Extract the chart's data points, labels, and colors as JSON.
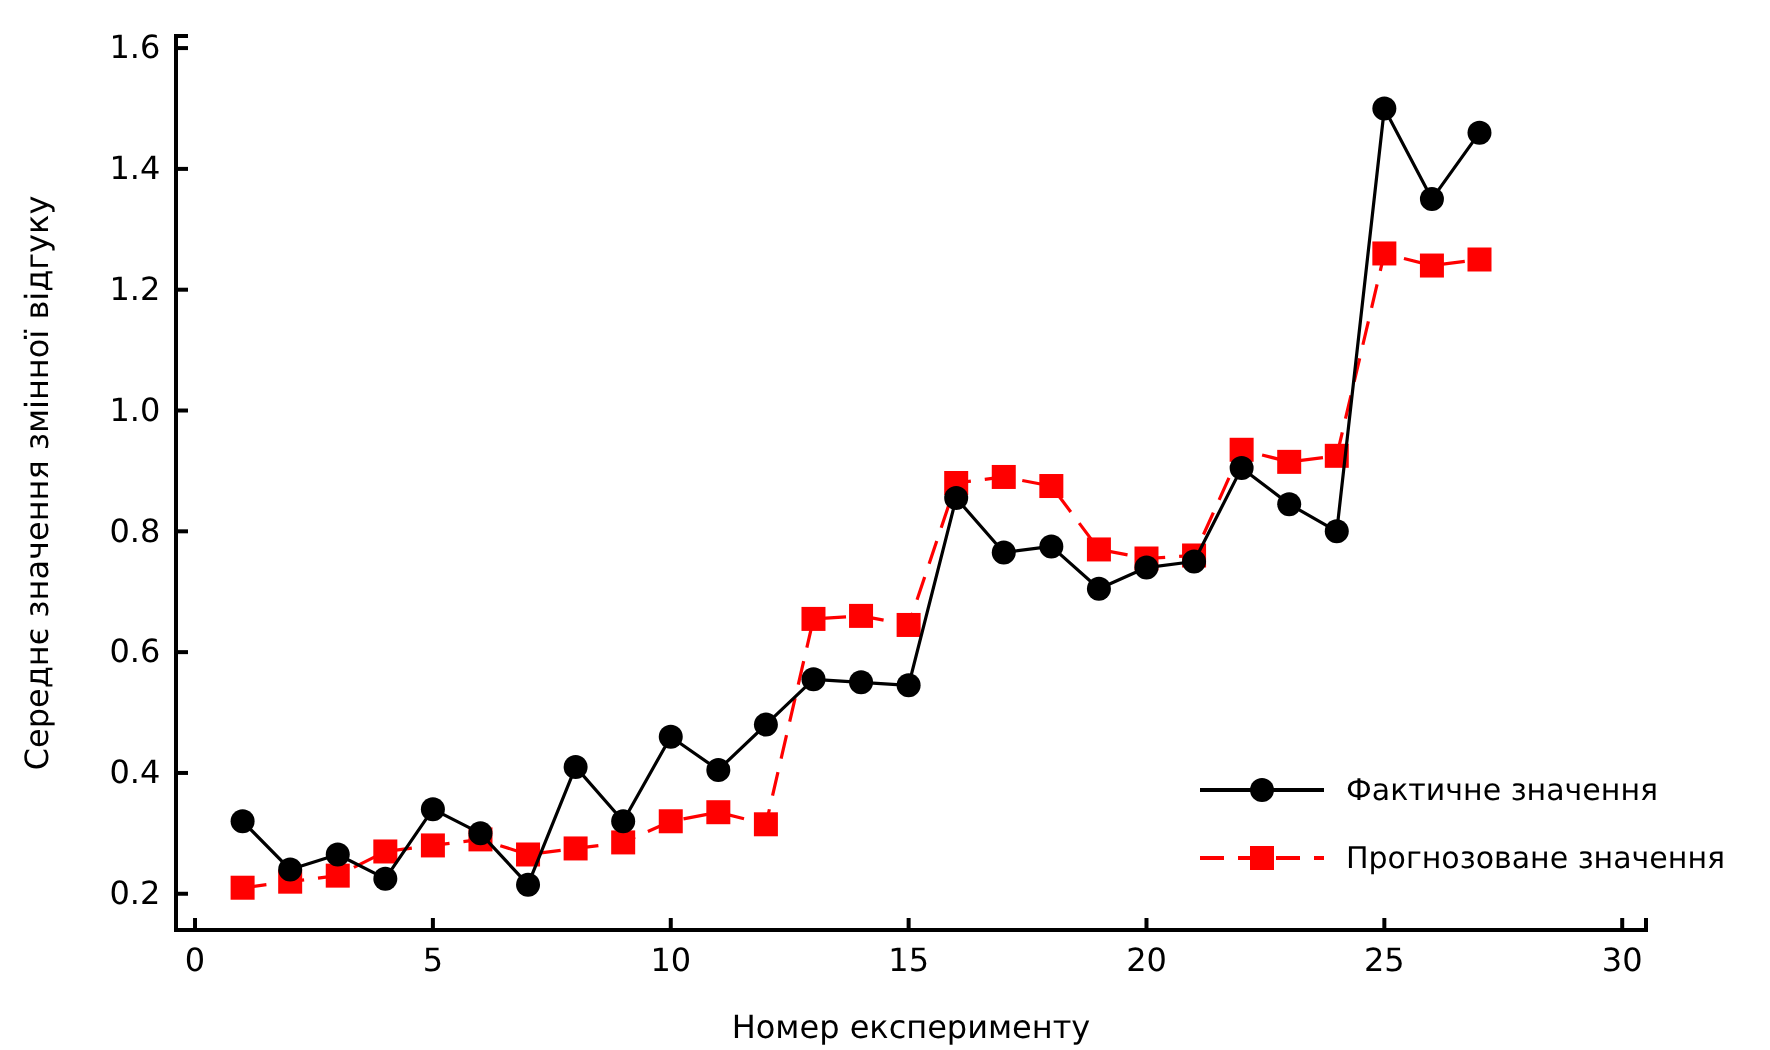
{
  "chart_data": {
    "type": "line",
    "xlabel": "Номер експерименту",
    "ylabel": "Середнє значення змінної відгуку",
    "x": [
      1,
      2,
      3,
      4,
      5,
      6,
      7,
      8,
      9,
      10,
      11,
      12,
      13,
      14,
      15,
      16,
      17,
      18,
      19,
      20,
      21,
      22,
      23,
      24,
      25,
      26,
      27
    ],
    "series": [
      {
        "name": "Фактичне значення",
        "color": "#000000",
        "marker": "circle",
        "line_style": "solid",
        "values": [
          0.32,
          0.24,
          0.265,
          0.225,
          0.34,
          0.3,
          0.215,
          0.41,
          0.32,
          0.46,
          0.405,
          0.48,
          0.555,
          0.55,
          0.545,
          0.855,
          0.765,
          0.775,
          0.705,
          0.74,
          0.75,
          0.905,
          0.845,
          0.8,
          1.5,
          1.35,
          1.46
        ]
      },
      {
        "name": "Прогнозоване значення",
        "color": "#ff0000",
        "marker": "square",
        "line_style": "dashed",
        "values": [
          0.21,
          0.22,
          0.23,
          0.27,
          0.28,
          0.29,
          0.265,
          0.275,
          0.285,
          0.32,
          0.335,
          0.315,
          0.655,
          0.66,
          0.645,
          0.88,
          0.89,
          0.875,
          0.77,
          0.755,
          0.76,
          0.935,
          0.915,
          0.925,
          1.26,
          1.24,
          1.25
        ]
      }
    ],
    "xlim": [
      -0.4,
      30.5
    ],
    "xticks": [
      0,
      5,
      10,
      15,
      20,
      25,
      30
    ],
    "ylim": [
      0.14,
      1.62
    ],
    "yticks": [
      {
        "value": 0.2,
        "label": "0.2"
      },
      {
        "value": 0.4,
        "label": "0.4"
      },
      {
        "value": 0.6,
        "label": "0.6"
      },
      {
        "value": 0.8,
        "label": "0.8"
      },
      {
        "value": 1.0,
        "label": "1.0"
      },
      {
        "value": 1.2,
        "label": "1.2"
      },
      {
        "value": 1.4,
        "label": "1.4"
      },
      {
        "value": 1.6,
        "label": "1.6"
      }
    ],
    "grid": false,
    "legend": "bottom right"
  }
}
